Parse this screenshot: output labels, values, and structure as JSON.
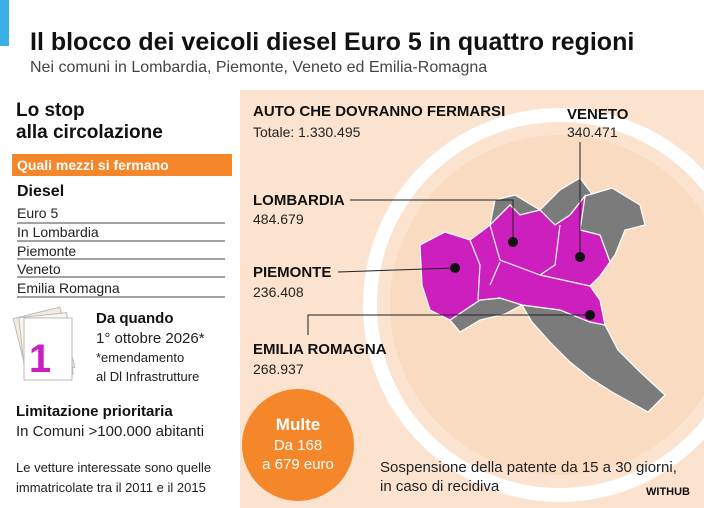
{
  "header": {
    "title": "Il blocco dei veicoli diesel Euro 5 in quattro regioni",
    "subtitle": "Nei comuni in Lombardia, Piemonte, Veneto ed Emilia-Romagna"
  },
  "left": {
    "heading": [
      "Lo stop",
      "alla circolazione"
    ],
    "section": "Quali mezzi si fermano",
    "category": "Diesel",
    "items": [
      "Euro 5",
      "In Lombardia",
      "Piemonte",
      "Veneto",
      "Emilia Romagna"
    ],
    "since": {
      "label": "Da quando",
      "date": "1° ottobre 2026*",
      "note": [
        "*emendamento",
        "al Dl Infrastrutture"
      ],
      "calendar_day": "1"
    },
    "priority": {
      "label": "Limitazione prioritaria",
      "text": "In Comuni >100.000 abitanti"
    },
    "footnote": [
      "Le vetture interessate sono quelle",
      "immatricolate tra il 2011 e il 2015"
    ]
  },
  "map": {
    "heading": "AUTO CHE DOVRANNO FERMARSI",
    "total": "Totale: 1.330.495",
    "regions": [
      {
        "name": "VENETO",
        "value": "340.471"
      },
      {
        "name": "LOMBARDIA",
        "value": "484.679"
      },
      {
        "name": "PIEMONTE",
        "value": "236.408"
      },
      {
        "name": "EMILIA ROMAGNA",
        "value": "268.937"
      }
    ]
  },
  "fines": {
    "label": "Multe",
    "text": [
      "Da 168",
      "a 679 euro"
    ]
  },
  "suspension": [
    "Sospensione della patente da 15 a 30 giorni,",
    "in caso di recidiva"
  ],
  "source": "WITHUB"
}
